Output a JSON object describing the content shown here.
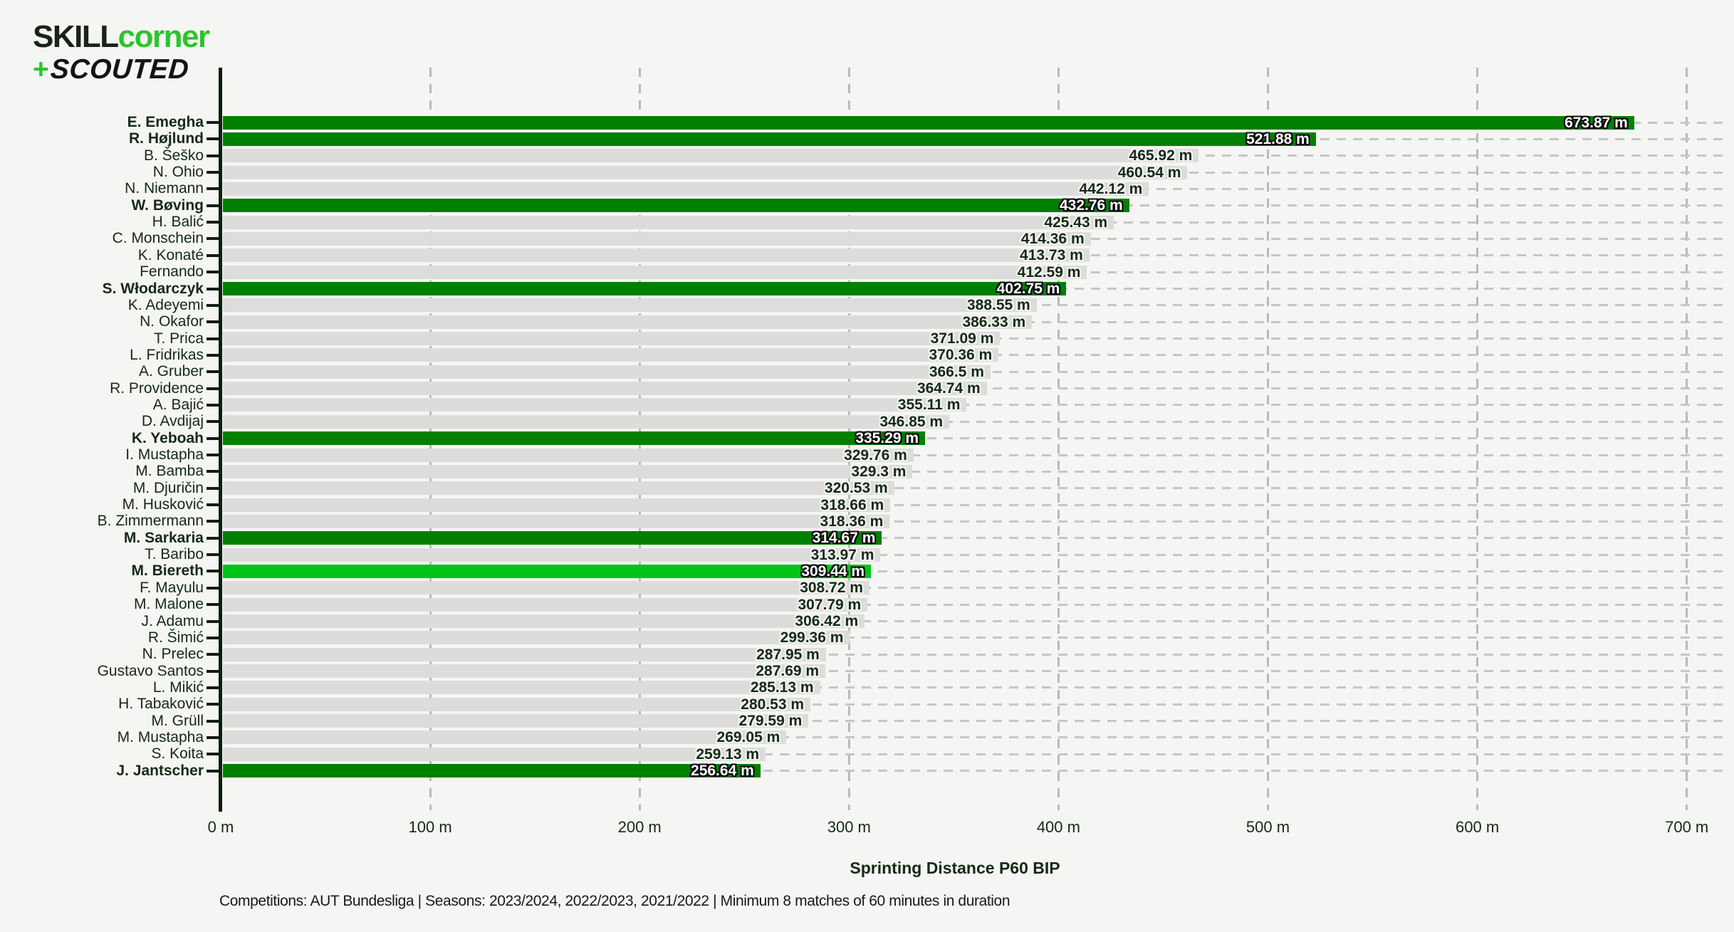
{
  "logo": {
    "skill": "SKILL",
    "corner": "corner",
    "plus": "+",
    "scouted": "SCOUTED"
  },
  "chart_data": {
    "type": "bar",
    "orientation": "horizontal",
    "title": "",
    "xlabel": "Sprinting Distance P60 BIP",
    "ylabel": "",
    "xlim": [
      0,
      700
    ],
    "x_tick_labels": [
      "0 m",
      "100 m",
      "200 m",
      "300 m",
      "400 m",
      "500 m",
      "600 m",
      "700 m"
    ],
    "unit": "m",
    "grid": "dashed",
    "legend": "none",
    "highlight_player": "M. Biereth",
    "players": [
      {
        "name": "E. Emegha",
        "value": 673.87,
        "label": "673.87 m",
        "style": "green"
      },
      {
        "name": "R. Højlund",
        "value": 521.88,
        "label": "521.88 m",
        "style": "green"
      },
      {
        "name": "B. Šeško",
        "value": 465.92,
        "label": "465.92 m",
        "style": "grey"
      },
      {
        "name": "N. Ohio",
        "value": 460.54,
        "label": "460.54 m",
        "style": "grey"
      },
      {
        "name": "N. Niemann",
        "value": 442.12,
        "label": "442.12 m",
        "style": "grey"
      },
      {
        "name": "W. Bøving",
        "value": 432.76,
        "label": "432.76 m",
        "style": "green"
      },
      {
        "name": "H. Balić",
        "value": 425.43,
        "label": "425.43 m",
        "style": "grey"
      },
      {
        "name": "C. Monschein",
        "value": 414.36,
        "label": "414.36 m",
        "style": "grey"
      },
      {
        "name": "K. Konaté",
        "value": 413.73,
        "label": "413.73 m",
        "style": "grey"
      },
      {
        "name": "Fernando",
        "value": 412.59,
        "label": "412.59 m",
        "style": "grey"
      },
      {
        "name": "S. Włodarczyk",
        "value": 402.75,
        "label": "402.75 m",
        "style": "green"
      },
      {
        "name": "K. Adeyemi",
        "value": 388.55,
        "label": "388.55 m",
        "style": "grey"
      },
      {
        "name": "N. Okafor",
        "value": 386.33,
        "label": "386.33 m",
        "style": "grey"
      },
      {
        "name": "T. Prica",
        "value": 371.09,
        "label": "371.09 m",
        "style": "grey"
      },
      {
        "name": "L. Fridrikas",
        "value": 370.36,
        "label": "370.36 m",
        "style": "grey"
      },
      {
        "name": "A. Gruber",
        "value": 366.5,
        "label": "366.5 m",
        "style": "grey"
      },
      {
        "name": "R. Providence",
        "value": 364.74,
        "label": "364.74 m",
        "style": "grey"
      },
      {
        "name": "A. Bajić",
        "value": 355.11,
        "label": "355.11 m",
        "style": "grey"
      },
      {
        "name": "D. Avdijaj",
        "value": 346.85,
        "label": "346.85 m",
        "style": "grey"
      },
      {
        "name": "K. Yeboah",
        "value": 335.29,
        "label": "335.29 m",
        "style": "green"
      },
      {
        "name": "I. Mustapha",
        "value": 329.76,
        "label": "329.76 m",
        "style": "grey"
      },
      {
        "name": "M. Bamba",
        "value": 329.3,
        "label": "329.3 m",
        "style": "grey"
      },
      {
        "name": "M. Djuričin",
        "value": 320.53,
        "label": "320.53 m",
        "style": "grey"
      },
      {
        "name": "M. Husković",
        "value": 318.66,
        "label": "318.66 m",
        "style": "grey"
      },
      {
        "name": "B. Zimmermann",
        "value": 318.36,
        "label": "318.36 m",
        "style": "grey"
      },
      {
        "name": "M. Sarkaria",
        "value": 314.67,
        "label": "314.67 m",
        "style": "green"
      },
      {
        "name": "T. Baribo",
        "value": 313.97,
        "label": "313.97 m",
        "style": "grey"
      },
      {
        "name": "M. Biereth",
        "value": 309.44,
        "label": "309.44 m",
        "style": "highlight"
      },
      {
        "name": "F. Mayulu",
        "value": 308.72,
        "label": "308.72 m",
        "style": "grey"
      },
      {
        "name": "M. Malone",
        "value": 307.79,
        "label": "307.79 m",
        "style": "grey"
      },
      {
        "name": "J. Adamu",
        "value": 306.42,
        "label": "306.42 m",
        "style": "grey"
      },
      {
        "name": "R. Šimić",
        "value": 299.36,
        "label": "299.36 m",
        "style": "grey"
      },
      {
        "name": "N. Prelec",
        "value": 287.95,
        "label": "287.95 m",
        "style": "grey"
      },
      {
        "name": "Gustavo Santos",
        "value": 287.69,
        "label": "287.69 m",
        "style": "grey"
      },
      {
        "name": "L. Mikić",
        "value": 285.13,
        "label": "285.13 m",
        "style": "grey"
      },
      {
        "name": "H. Tabaković",
        "value": 280.53,
        "label": "280.53 m",
        "style": "grey"
      },
      {
        "name": "M. Grüll",
        "value": 279.59,
        "label": "279.59 m",
        "style": "grey"
      },
      {
        "name": "M. Mustapha",
        "value": 269.05,
        "label": "269.05 m",
        "style": "grey"
      },
      {
        "name": "S. Koita",
        "value": 259.13,
        "label": "259.13 m",
        "style": "grey"
      },
      {
        "name": "J. Jantscher",
        "value": 256.64,
        "label": "256.64 m",
        "style": "green"
      }
    ]
  },
  "footer": "Competitions: AUT Bundesliga | Seasons: 2023/2024, 2022/2023, 2021/2022 | Minimum 8 matches of 60 minutes in duration",
  "colors": {
    "background": "#f5f5f3",
    "bar_grey": "#dcdcda",
    "bar_green": "#008000",
    "bar_highlight": "#00c417",
    "logo_green": "#2dc42d",
    "text_dark": "#142a14",
    "gridline_h": "#c6c6c4",
    "gridline_v": "#b9b9b7",
    "axis_spine": "#0e1e0e"
  }
}
